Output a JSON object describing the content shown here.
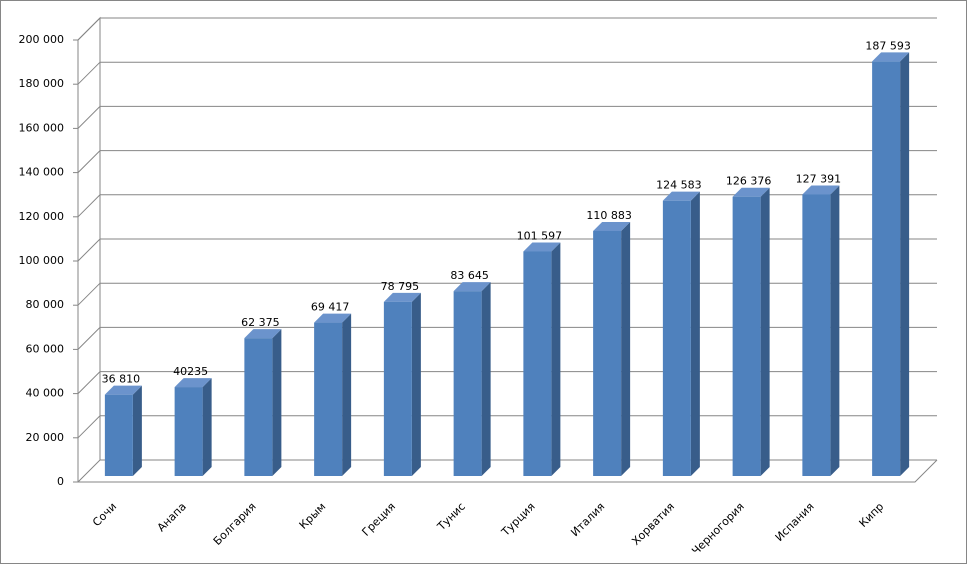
{
  "chart_data": {
    "type": "bar3d",
    "categories": [
      "Сочи",
      "Анапа",
      "Болгария",
      "Крым",
      "Греция",
      "Тунис",
      "Турция",
      "Италия",
      "Хорватия",
      "Черногория",
      "Испания",
      "Кипр"
    ],
    "values": [
      36810,
      40235,
      62375,
      69417,
      78795,
      83645,
      101597,
      110883,
      124583,
      126376,
      127391,
      187593
    ],
    "value_labels": [
      "36 810",
      "40235",
      "62 375",
      "69 417",
      "78 795",
      "83 645",
      "101 597",
      "110 883",
      "124 583",
      "126 376",
      "127 391",
      "187 593"
    ],
    "color": "#4f81bd",
    "ylim": [
      0,
      200000
    ],
    "yticks": [
      0,
      {
        "value": 20000,
        "label": "20 000"
      },
      {
        "value": 40000,
        "label": "40 000"
      },
      {
        "value": 60000,
        "label": "60 000"
      },
      {
        "value": 80000,
        "label": "80 000"
      },
      {
        "value": 100000,
        "label": "100 000"
      },
      {
        "value": 120000,
        "label": "120 000"
      },
      {
        "value": 140000,
        "label": "140 000"
      },
      {
        "value": 160000,
        "label": "160 000"
      },
      {
        "value": 180000,
        "label": "180 000"
      },
      {
        "value": 200000,
        "label": "200 000"
      }
    ],
    "grid": true
  }
}
